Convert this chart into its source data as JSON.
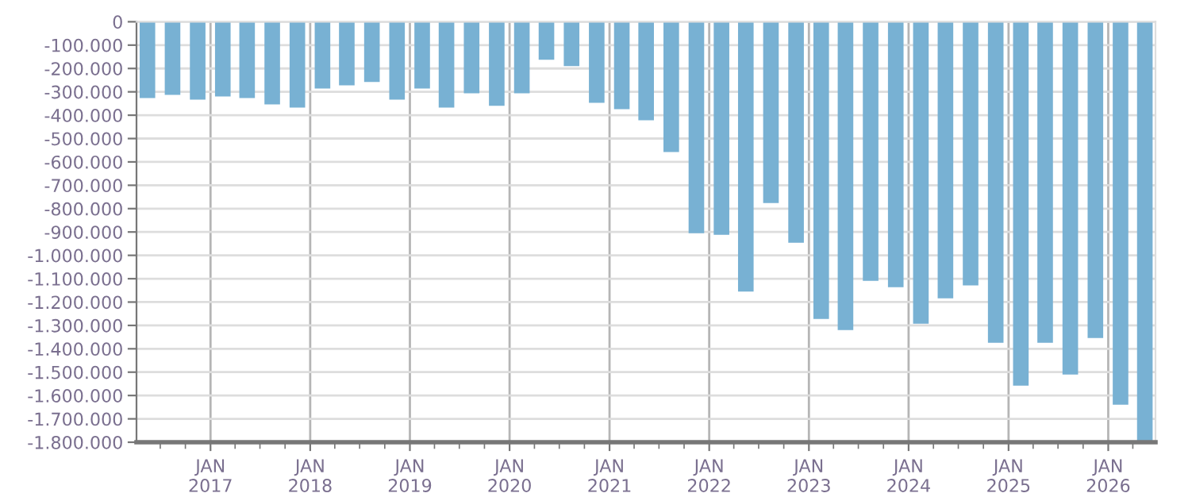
{
  "chart_data": {
    "type": "bar",
    "color": "#78b1d3",
    "x": [
      "2016-05-15",
      "2016-08-15",
      "2016-11-15",
      "2017-02-15",
      "2017-05-15",
      "2017-08-15",
      "2017-11-15",
      "2018-02-15",
      "2018-05-15",
      "2018-08-15",
      "2018-11-15",
      "2019-02-15",
      "2019-05-15",
      "2019-08-15",
      "2019-11-15",
      "2020-02-15",
      "2020-05-15",
      "2020-08-15",
      "2020-11-15",
      "2021-02-15",
      "2021-05-15",
      "2021-08-15",
      "2021-11-15",
      "2022-02-15",
      "2022-05-15",
      "2022-08-15",
      "2022-11-15",
      "2023-02-15",
      "2023-05-15",
      "2023-08-15",
      "2023-11-15",
      "2024-02-15",
      "2024-05-15",
      "2024-08-15",
      "2024-11-15",
      "2025-02-15",
      "2025-05-15",
      "2025-08-15",
      "2025-11-15",
      "2026-02-15",
      "2026-05-15"
    ],
    "values": [
      -327000,
      -313000,
      -333000,
      -320000,
      -327000,
      -354000,
      -367000,
      -286000,
      -272000,
      -258000,
      -333000,
      -286000,
      -367000,
      -306000,
      -360000,
      -306000,
      -163000,
      -190000,
      -347000,
      -374000,
      -422000,
      -558000,
      -905000,
      -912000,
      -1155000,
      -776000,
      -946000,
      -1272000,
      -1320000,
      -1109000,
      -1136000,
      -1293000,
      -1184000,
      -1129000,
      -1374000,
      -1558000,
      -1374000,
      -1510000,
      -1354000,
      -1639000,
      -1800000
    ],
    "xlim": [
      "2016-04-05",
      "2026-06-23"
    ],
    "xticks": [
      {
        "value": "2017-01-01",
        "label": "JAN\n2017"
      },
      {
        "value": "2018-01-01",
        "label": "JAN\n2018"
      },
      {
        "value": "2019-01-01",
        "label": "JAN\n2019"
      },
      {
        "value": "2020-01-01",
        "label": "JAN\n2020"
      },
      {
        "value": "2021-01-01",
        "label": "JAN\n2021"
      },
      {
        "value": "2022-01-01",
        "label": "JAN\n2022"
      },
      {
        "value": "2023-01-01",
        "label": "JAN\n2023"
      },
      {
        "value": "2024-01-01",
        "label": "JAN\n2024"
      },
      {
        "value": "2025-01-01",
        "label": "JAN\n2025"
      },
      {
        "value": "2026-01-01",
        "label": "JAN\n2026"
      }
    ],
    "ylim": [
      -1800000,
      0
    ],
    "yticks": [
      0,
      {
        "value": -100000,
        "label": "-100.000"
      },
      {
        "value": -200000,
        "label": "-200.000"
      },
      {
        "value": -300000,
        "label": "-300.000"
      },
      {
        "value": -400000,
        "label": "-400.000"
      },
      {
        "value": -500000,
        "label": "-500.000"
      },
      {
        "value": -600000,
        "label": "-600.000"
      },
      {
        "value": -700000,
        "label": "-700.000"
      },
      {
        "value": -800000,
        "label": "-800.000"
      },
      {
        "value": -900000,
        "label": "-900.000"
      },
      {
        "value": -1000000,
        "label": "-1.000.000"
      },
      {
        "value": -1100000,
        "label": "-1.100.000"
      },
      {
        "value": -1200000,
        "label": "-1.200.000"
      },
      {
        "value": -1300000,
        "label": "-1.300.000"
      },
      {
        "value": -1400000,
        "label": "-1.400.000"
      },
      {
        "value": -1500000,
        "label": "-1.500.000"
      },
      {
        "value": -1600000,
        "label": "-1.600.000"
      },
      {
        "value": -1700000,
        "label": "-1.700.000"
      },
      {
        "value": -1800000,
        "label": "-1.800.000"
      }
    ],
    "grid": true
  }
}
